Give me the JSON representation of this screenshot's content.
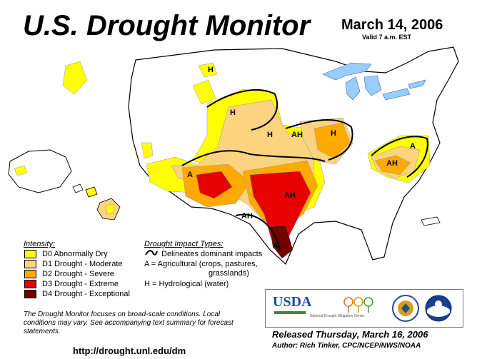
{
  "header": {
    "title": "U.S. Drought Monitor",
    "date": "March 14, 2006",
    "valid": "Valid 7 a.m. EST"
  },
  "legend": {
    "title": "Intensity:",
    "items": [
      {
        "label": "D0 Abnormally Dry",
        "color": "#ffff00"
      },
      {
        "label": "D1 Drought - Moderate",
        "color": "#fcd37f"
      },
      {
        "label": "D2 Drought - Severe",
        "color": "#ffaa00"
      },
      {
        "label": "D3 Drought - Extreme",
        "color": "#e60000"
      },
      {
        "label": "D4 Drought - Exceptional",
        "color": "#730000"
      }
    ]
  },
  "impacts": {
    "title": "Drought Impact Types:",
    "line1": "Delineates dominant impacts",
    "line2a": "A = Agricultural (crops, pastures,",
    "line2b": "grasslands)",
    "line3": "H = Hydrological (water)"
  },
  "map_labels": {
    "a": "A",
    "h": "H",
    "ah": "AH"
  },
  "note": "The Drought Monitor focuses on broad-scale conditions. Local conditions may vary.  See accompanying text summary for forecast statements.",
  "url": "http://drought.unl.edu/dm",
  "released": "Released Thursday, March 16, 2006",
  "author": "Author:  Rich Tinker, CPC/NCEP/NWS/NOAA",
  "logos": {
    "usda": "USDA",
    "ndmc": "National Drought Mitigation Center"
  },
  "colors": {
    "d0": "#ffff00",
    "d1": "#fcd37f",
    "d2": "#ffaa00",
    "d3": "#e60000",
    "d4": "#730000",
    "water": "#99ccff"
  }
}
